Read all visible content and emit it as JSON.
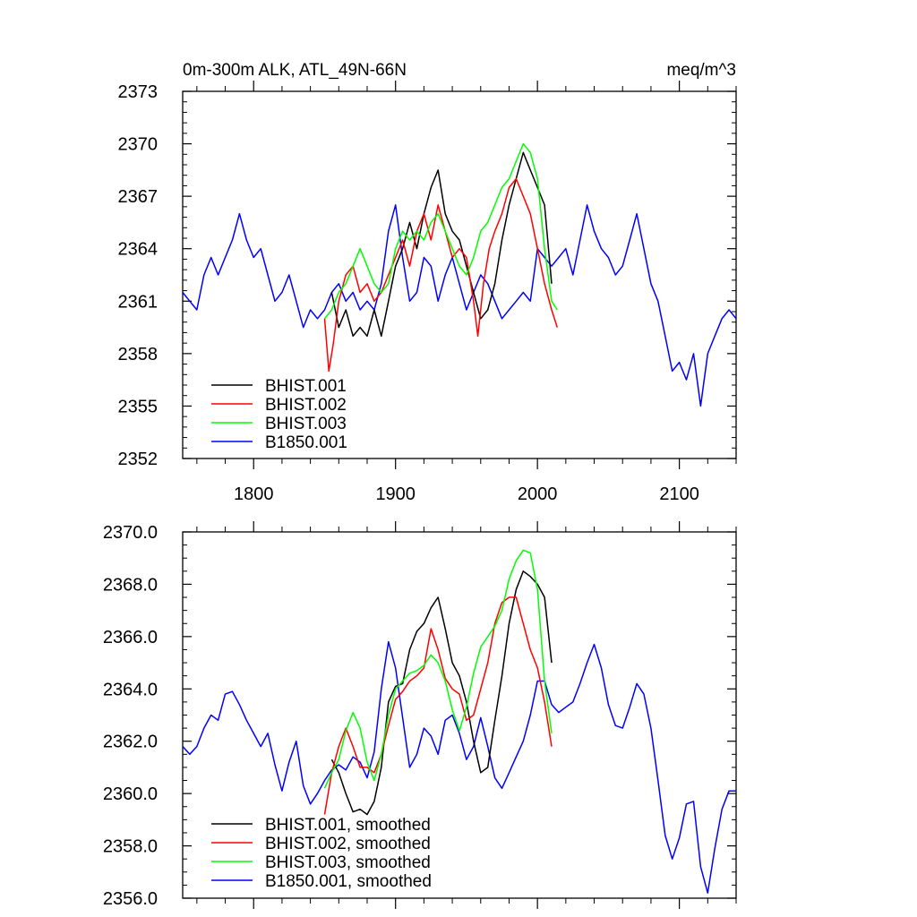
{
  "chart_data": [
    {
      "type": "line",
      "title_left": "0m-300m ALK, ATL_49N-66N",
      "title_right": "meq/m^3",
      "xlim": [
        1750,
        2140
      ],
      "ylim": [
        2352,
        2373
      ],
      "xticks": [
        1800,
        1900,
        2000,
        2100
      ],
      "xtick_labels": [
        "1800",
        "1900",
        "2000",
        "2100"
      ],
      "yticks": [
        2352,
        2355,
        2358,
        2361,
        2364,
        2367,
        2370,
        2373
      ],
      "ytick_labels": [
        "2352",
        "2355",
        "2358",
        "2361",
        "2364",
        "2367",
        "2370",
        "2373"
      ],
      "legend_position": "bottom-left",
      "series": [
        {
          "name": "BHIST.001",
          "color": "#000000",
          "x": [
            1855,
            1860,
            1865,
            1870,
            1875,
            1880,
            1885,
            1890,
            1895,
            1900,
            1905,
            1910,
            1915,
            1920,
            1925,
            1930,
            1935,
            1940,
            1945,
            1950,
            1955,
            1960,
            1965,
            1970,
            1975,
            1980,
            1985,
            1990,
            1995,
            2000,
            2005,
            2010
          ],
          "y": [
            2361.5,
            2359.5,
            2360.5,
            2359,
            2359.5,
            2359,
            2360.5,
            2359,
            2361,
            2363,
            2364,
            2365.5,
            2364,
            2366,
            2367.5,
            2368.5,
            2366,
            2365,
            2364.5,
            2363,
            2361.5,
            2360,
            2360.5,
            2362,
            2364.5,
            2366.5,
            2368,
            2369.5,
            2368.5,
            2367.5,
            2366.5,
            2362
          ]
        },
        {
          "name": "BHIST.002",
          "color": "#ff0000",
          "x": [
            1850,
            1853,
            1856,
            1860,
            1865,
            1870,
            1875,
            1880,
            1885,
            1890,
            1895,
            1900,
            1905,
            1910,
            1915,
            1920,
            1925,
            1930,
            1935,
            1940,
            1945,
            1950,
            1955,
            1958,
            1962,
            1966,
            1970,
            1975,
            1980,
            1985,
            1990,
            1995,
            2000,
            2005,
            2010,
            2014
          ],
          "y": [
            2360,
            2357,
            2358.5,
            2361,
            2362.5,
            2363,
            2361.5,
            2362,
            2361,
            2361.5,
            2362.5,
            2363.5,
            2364.5,
            2363,
            2365,
            2366,
            2364.5,
            2366.5,
            2365,
            2363.5,
            2364,
            2363.5,
            2361,
            2359,
            2362,
            2364,
            2365,
            2366,
            2367.5,
            2368,
            2367,
            2366,
            2364,
            2362,
            2360.5,
            2359.5
          ]
        },
        {
          "name": "BHIST.003",
          "color": "#00ff00",
          "x": [
            1850,
            1855,
            1860,
            1865,
            1870,
            1875,
            1880,
            1885,
            1890,
            1895,
            1900,
            1905,
            1910,
            1915,
            1920,
            1925,
            1930,
            1935,
            1940,
            1945,
            1950,
            1955,
            1960,
            1965,
            1970,
            1975,
            1980,
            1985,
            1990,
            1995,
            2000,
            2005,
            2010,
            2014
          ],
          "y": [
            2360,
            2360.5,
            2361.5,
            2362,
            2363,
            2364,
            2363,
            2362,
            2361.5,
            2362,
            2364,
            2365,
            2364.5,
            2365,
            2364.5,
            2365.5,
            2366,
            2365,
            2364,
            2363,
            2362.5,
            2363.5,
            2365,
            2365.5,
            2366.5,
            2367.5,
            2368,
            2369,
            2370,
            2369.5,
            2368,
            2364,
            2361,
            2360.5
          ]
        },
        {
          "name": "B1850.001",
          "color": "#0000ff",
          "x": [
            1750,
            1755,
            1760,
            1765,
            1770,
            1775,
            1780,
            1785,
            1790,
            1795,
            1800,
            1805,
            1810,
            1815,
            1820,
            1825,
            1830,
            1835,
            1840,
            1845,
            1850,
            1855,
            1860,
            1865,
            1870,
            1875,
            1880,
            1885,
            1890,
            1895,
            1900,
            1905,
            1910,
            1915,
            1920,
            1925,
            1930,
            1935,
            1940,
            1945,
            1950,
            1955,
            1960,
            1965,
            1970,
            1975,
            1980,
            1985,
            1990,
            1995,
            2000,
            2005,
            2010,
            2015,
            2020,
            2025,
            2030,
            2035,
            2040,
            2045,
            2050,
            2055,
            2060,
            2065,
            2070,
            2075,
            2080,
            2085,
            2090,
            2095,
            2100,
            2105,
            2110,
            2115,
            2120,
            2125,
            2130,
            2135,
            2140
          ],
          "y": [
            2361.5,
            2361,
            2360.5,
            2362.5,
            2363.5,
            2362.5,
            2363.5,
            2364.5,
            2366,
            2364.5,
            2363.5,
            2364,
            2362.5,
            2361,
            2361.5,
            2362.5,
            2361,
            2359.5,
            2360.5,
            2360,
            2360.5,
            2361.5,
            2362,
            2361,
            2361.5,
            2360.5,
            2361,
            2360.5,
            2362,
            2365,
            2366.5,
            2363.5,
            2361,
            2361.5,
            2363.5,
            2363,
            2361,
            2362.5,
            2363.5,
            2362,
            2360.5,
            2361.5,
            2362.5,
            2362,
            2361,
            2360,
            2360.5,
            2361,
            2361.5,
            2361,
            2364,
            2363.5,
            2363,
            2363.5,
            2364,
            2362.5,
            2364.5,
            2366.5,
            2365,
            2364,
            2363.5,
            2362.5,
            2363,
            2364.5,
            2366,
            2364,
            2362,
            2361,
            2359,
            2357,
            2357.5,
            2356.5,
            2358,
            2355,
            2358,
            2359,
            2360,
            2360.5,
            2360
          ]
        }
      ]
    },
    {
      "type": "line",
      "ylim": [
        2356.0,
        2370.0
      ],
      "xlim": [
        1750,
        2140
      ],
      "xticks": [
        1800,
        1900,
        2000,
        2100
      ],
      "yticks": [
        2356.0,
        2358.0,
        2360.0,
        2362.0,
        2364.0,
        2366.0,
        2368.0,
        2370.0
      ],
      "ytick_labels": [
        "2356.0",
        "2358.0",
        "2360.0",
        "2362.0",
        "2364.0",
        "2366.0",
        "2368.0",
        "2370.0"
      ],
      "legend_position": "bottom-left",
      "series": [
        {
          "name": "BHIST.001, smoothed",
          "color": "#000000",
          "x": [
            1855,
            1860,
            1865,
            1870,
            1875,
            1880,
            1885,
            1890,
            1895,
            1900,
            1905,
            1910,
            1915,
            1920,
            1925,
            1930,
            1935,
            1940,
            1945,
            1950,
            1955,
            1960,
            1965,
            1970,
            1975,
            1980,
            1985,
            1990,
            1995,
            2000,
            2005,
            2010
          ],
          "y": [
            2361.3,
            2360.8,
            2360,
            2359.3,
            2359.4,
            2359.2,
            2359.7,
            2361,
            2363.5,
            2364.1,
            2364.2,
            2365.5,
            2366.2,
            2366.5,
            2367.1,
            2367.5,
            2366.3,
            2365,
            2364.5,
            2363.5,
            2362,
            2360.8,
            2361,
            2362.8,
            2364.5,
            2366.5,
            2367.8,
            2368.5,
            2368.3,
            2368.0,
            2367.5,
            2365
          ]
        },
        {
          "name": "BHIST.002, smoothed",
          "color": "#ff0000",
          "x": [
            1850,
            1855,
            1860,
            1865,
            1870,
            1875,
            1880,
            1885,
            1890,
            1895,
            1900,
            1905,
            1910,
            1915,
            1920,
            1925,
            1930,
            1935,
            1940,
            1945,
            1950,
            1955,
            1960,
            1965,
            1970,
            1975,
            1980,
            1985,
            1990,
            1995,
            2000,
            2005,
            2010
          ],
          "y": [
            2359.2,
            2360.8,
            2361.8,
            2362.5,
            2361.8,
            2361,
            2361,
            2360.8,
            2361.5,
            2362.6,
            2363.6,
            2363.9,
            2364.3,
            2364.5,
            2364.8,
            2366.3,
            2365.5,
            2364.4,
            2364,
            2363.8,
            2362.8,
            2363,
            2364,
            2365,
            2366.5,
            2367.3,
            2367.5,
            2367.5,
            2366.5,
            2365.5,
            2364.8,
            2363.5,
            2361.8
          ]
        },
        {
          "name": "BHIST.003, smoothed",
          "color": "#00ff00",
          "x": [
            1850,
            1855,
            1860,
            1865,
            1870,
            1875,
            1880,
            1885,
            1890,
            1895,
            1900,
            1905,
            1910,
            1915,
            1920,
            1925,
            1930,
            1935,
            1940,
            1945,
            1950,
            1955,
            1960,
            1965,
            1970,
            1975,
            1980,
            1985,
            1990,
            1995,
            2000,
            2005,
            2010
          ],
          "y": [
            2360.2,
            2360.8,
            2361.3,
            2362.4,
            2363.1,
            2362.5,
            2361.2,
            2360.5,
            2361.5,
            2363,
            2364,
            2364.3,
            2364.6,
            2364.7,
            2364.9,
            2365.3,
            2365,
            2364.3,
            2363.2,
            2362.4,
            2363.3,
            2364.6,
            2365.6,
            2366,
            2366.4,
            2367,
            2368.2,
            2368.9,
            2369.3,
            2369.2,
            2367.8,
            2364.3,
            2362.3
          ]
        },
        {
          "name": "B1850.001, smoothed",
          "color": "#0000ff",
          "x": [
            1750,
            1755,
            1760,
            1765,
            1770,
            1775,
            1780,
            1785,
            1790,
            1795,
            1800,
            1805,
            1810,
            1815,
            1820,
            1825,
            1830,
            1835,
            1840,
            1845,
            1850,
            1855,
            1860,
            1865,
            1870,
            1875,
            1880,
            1885,
            1890,
            1895,
            1900,
            1905,
            1910,
            1915,
            1920,
            1925,
            1930,
            1935,
            1940,
            1945,
            1950,
            1955,
            1960,
            1965,
            1970,
            1975,
            1980,
            1985,
            1990,
            1995,
            2000,
            2005,
            2010,
            2015,
            2020,
            2025,
            2030,
            2035,
            2040,
            2045,
            2050,
            2055,
            2060,
            2065,
            2070,
            2075,
            2080,
            2085,
            2090,
            2095,
            2100,
            2105,
            2110,
            2115,
            2120,
            2125,
            2130,
            2135,
            2140
          ],
          "y": [
            2361.8,
            2361.5,
            2361.8,
            2362.5,
            2363,
            2362.8,
            2363.8,
            2363.9,
            2363.4,
            2362.8,
            2362.3,
            2361.8,
            2362.3,
            2361.1,
            2360.1,
            2361.2,
            2362,
            2360.3,
            2359.6,
            2360,
            2360.5,
            2360.9,
            2361.1,
            2360.9,
            2361.4,
            2361.2,
            2360.6,
            2361.6,
            2364,
            2365.8,
            2364.8,
            2362.9,
            2361,
            2361.5,
            2362.5,
            2362.2,
            2361.5,
            2362.8,
            2363,
            2362.3,
            2361.3,
            2361.8,
            2362.9,
            2361.8,
            2360.6,
            2360.2,
            2360.8,
            2361.4,
            2362,
            2363,
            2364.3,
            2364.3,
            2363.4,
            2363.1,
            2363.3,
            2363.5,
            2364.2,
            2365,
            2365.7,
            2364.8,
            2363.4,
            2362.6,
            2362.5,
            2363.3,
            2364.2,
            2363.8,
            2362.5,
            2360.5,
            2358.4,
            2357.5,
            2358.3,
            2359.6,
            2359.7,
            2357.2,
            2356.2,
            2357.9,
            2359.4,
            2360.1,
            2360.1
          ]
        }
      ]
    }
  ]
}
